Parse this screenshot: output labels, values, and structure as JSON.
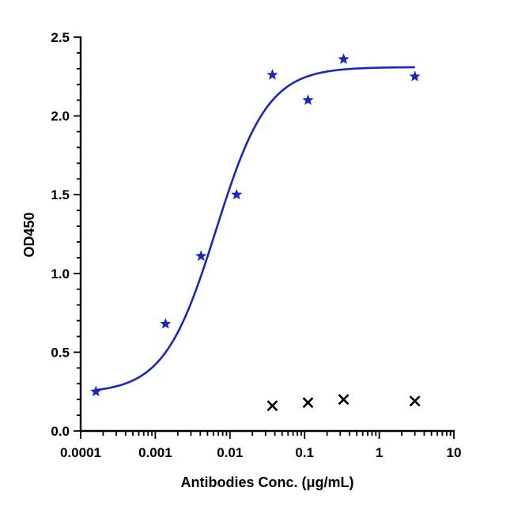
{
  "chart_data": {
    "type": "scatter",
    "title": "",
    "xlabel": "Antibodies Conc. (μg/mL)",
    "ylabel": "OD450",
    "x_scale": "log",
    "xlim": [
      0.0001,
      10
    ],
    "ylim": [
      0,
      2.5
    ],
    "x_ticks": [
      "0.0001",
      "0.001",
      "0.01",
      "0.1",
      "1",
      "10"
    ],
    "y_ticks": [
      "0.0",
      "0.5",
      "1.0",
      "1.5",
      "2.0",
      "2.5"
    ],
    "grid": false,
    "legend": "none",
    "series": [
      {
        "marker": "star",
        "color": "#1a25c8",
        "x": [
          0.00016,
          0.00137,
          0.0041,
          0.0123,
          0.037,
          0.111,
          0.333,
          3.0
        ],
        "y": [
          0.25,
          0.68,
          1.11,
          1.5,
          2.26,
          2.1,
          2.36,
          2.25
        ]
      },
      {
        "marker": "x",
        "color": "#000000",
        "x": [
          0.037,
          0.111,
          0.333,
          3.0
        ],
        "y": [
          0.16,
          0.18,
          0.2,
          0.19
        ]
      }
    ],
    "fit": {
      "color": "#1a25c8",
      "x_range": [
        0.00016,
        3.0
      ],
      "bottom": 0.24,
      "top": 2.31,
      "ec50": 0.0065,
      "hill": 1.25
    }
  }
}
